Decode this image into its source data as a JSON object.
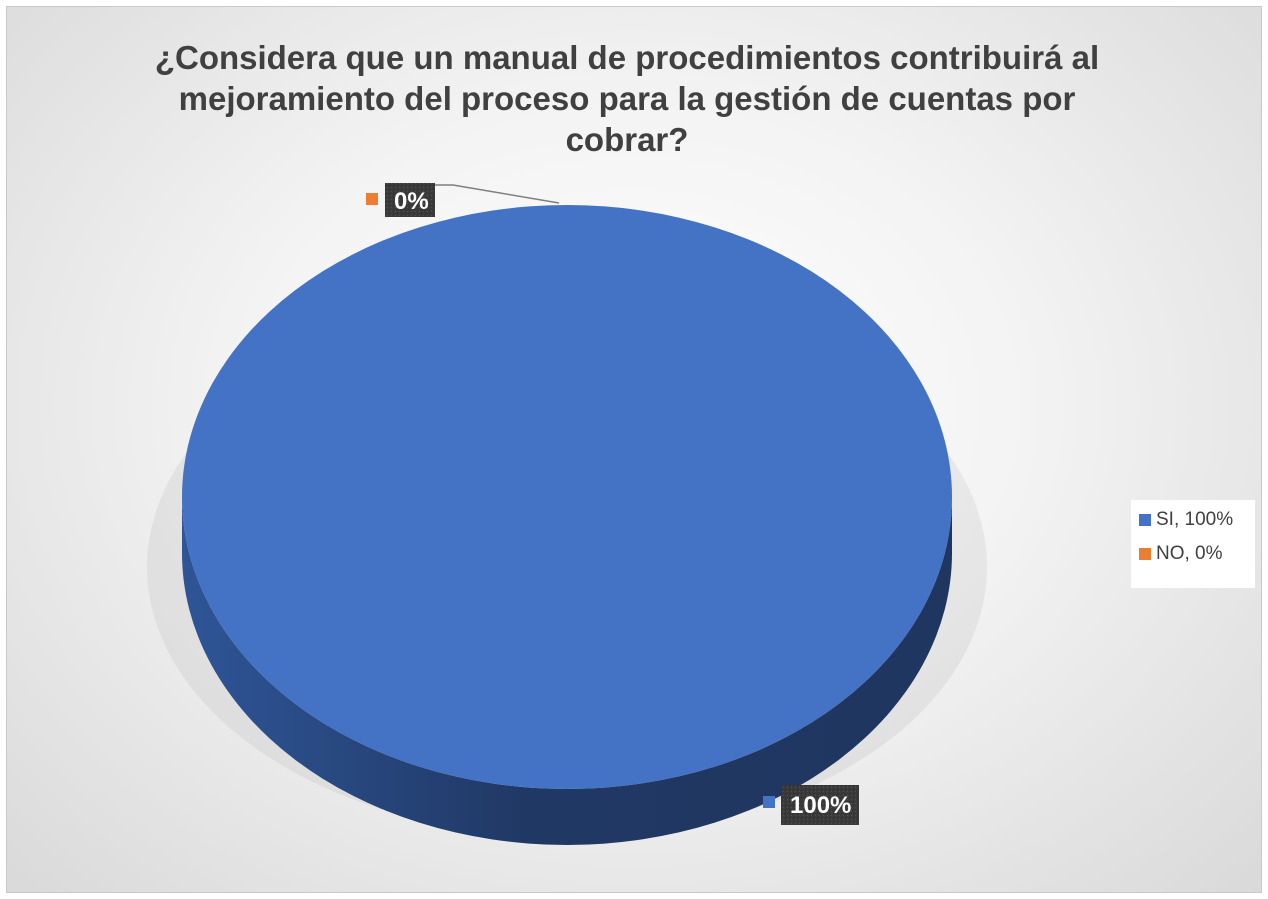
{
  "chart_data": {
    "type": "pie",
    "title": "¿Considera que un manual de procedimientos contribuirá al mejoramiento del proceso para la gestión de cuentas por cobrar?",
    "labels": [
      "SI",
      "NO"
    ],
    "values": [
      100,
      0
    ],
    "data_labels": [
      "100%",
      "0%"
    ],
    "legend_entries": [
      "SI, 100%",
      "NO, 0%"
    ],
    "colors": [
      "#4472c4",
      "#ed7d31"
    ],
    "legend_position": "right",
    "style": "3d-pie"
  }
}
